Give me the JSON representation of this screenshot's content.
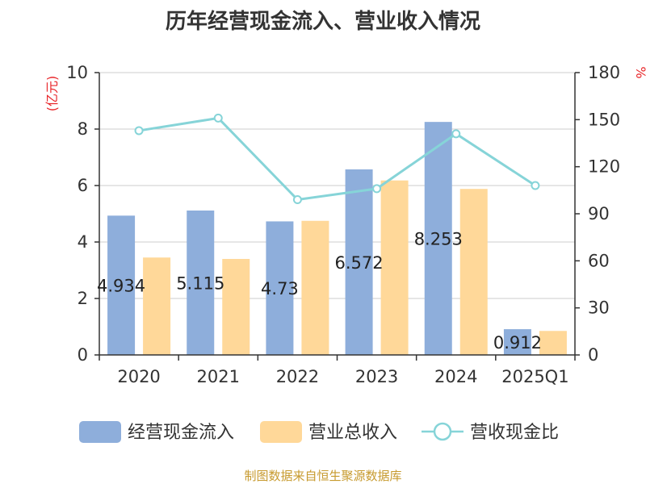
{
  "chart_data": {
    "type": "bar",
    "title": "历年经营现金流入、营业收入情况",
    "categories": [
      "2020",
      "2021",
      "2022",
      "2023",
      "2024",
      "2025Q1"
    ],
    "series": [
      {
        "name": "经营现金流入",
        "kind": "bar",
        "axis": "left",
        "color": "#8eaedb",
        "values": [
          4.934,
          5.115,
          4.73,
          6.572,
          8.253,
          0.912
        ],
        "data_labels": [
          "4.934",
          "5.115",
          "4.73",
          "6.572",
          "8.253",
          "0.912"
        ]
      },
      {
        "name": "营业总收入",
        "kind": "bar",
        "axis": "left",
        "color": "#ffd899",
        "values": [
          3.45,
          3.4,
          4.75,
          6.18,
          5.88,
          0.85
        ]
      },
      {
        "name": "营收现金比",
        "kind": "line",
        "axis": "right",
        "color": "#86d4d8",
        "values": [
          143,
          151,
          99,
          106,
          141,
          108
        ]
      }
    ],
    "y_left": {
      "label": "(亿元)",
      "min": 0,
      "max": 10,
      "ticks": [
        "0",
        "2",
        "4",
        "6",
        "8",
        "10"
      ]
    },
    "y_right": {
      "label": "%",
      "min": 0,
      "max": 180,
      "ticks": [
        "0",
        "30",
        "60",
        "90",
        "120",
        "150",
        "180"
      ]
    },
    "grid": true,
    "legend_position": "bottom"
  },
  "footer": {
    "source": "制图数据来自恒生聚源数据库"
  }
}
